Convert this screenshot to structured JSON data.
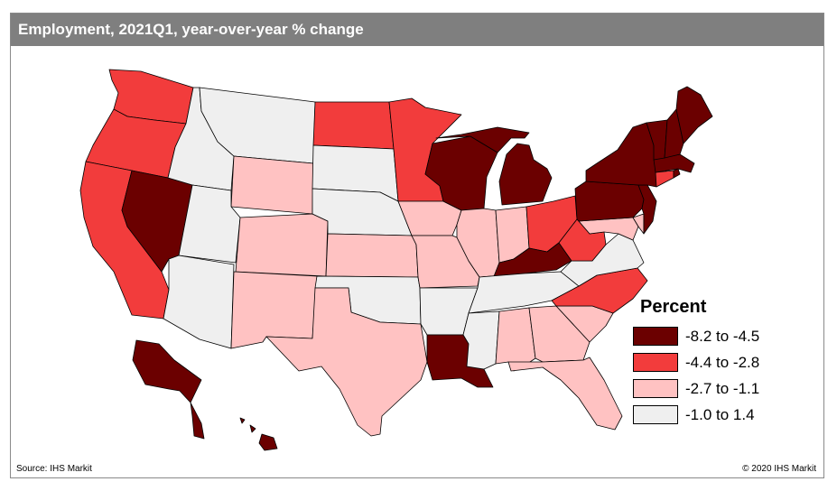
{
  "title": "Employment, 2021Q1, year-over-year % change",
  "legend": {
    "title": "Percent",
    "classes": [
      {
        "label": "-8.2 to -4.5",
        "color": "#6b0000"
      },
      {
        "label": "-4.4 to -2.8",
        "color": "#f23c3c"
      },
      {
        "label": "-2.7 to -1.1",
        "color": "#ffc2c2"
      },
      {
        "label": "-1.0 to 1.4",
        "color": "#efefef"
      }
    ]
  },
  "source": "Source: IHS Markit",
  "copyright": "© 2020 IHS Markit",
  "states": {
    "WA": 1,
    "OR": 1,
    "CA": 1,
    "NV": 0,
    "ID": 3,
    "MT": 3,
    "WY": 2,
    "UT": 3,
    "AZ": 3,
    "CO": 2,
    "NM": 2,
    "ND": 1,
    "SD": 3,
    "NE": 3,
    "KS": 2,
    "OK": 3,
    "TX": 2,
    "MN": 1,
    "IA": 2,
    "MO": 2,
    "AR": 3,
    "LA": 0,
    "WI": 0,
    "IL": 2,
    "MI": 0,
    "IN": 2,
    "OH": 1,
    "KY": 0,
    "TN": 3,
    "MS": 3,
    "AL": 2,
    "GA": 2,
    "FL": 2,
    "SC": 2,
    "NC": 1,
    "VA": 3,
    "WV": 1,
    "MD": 2,
    "DE": 2,
    "PA": 0,
    "NJ": 0,
    "NY": 0,
    "CT": 1,
    "RI": 0,
    "MA": 0,
    "VT": 0,
    "NH": 0,
    "ME": 0,
    "AK": 0,
    "HI": 0
  }
}
